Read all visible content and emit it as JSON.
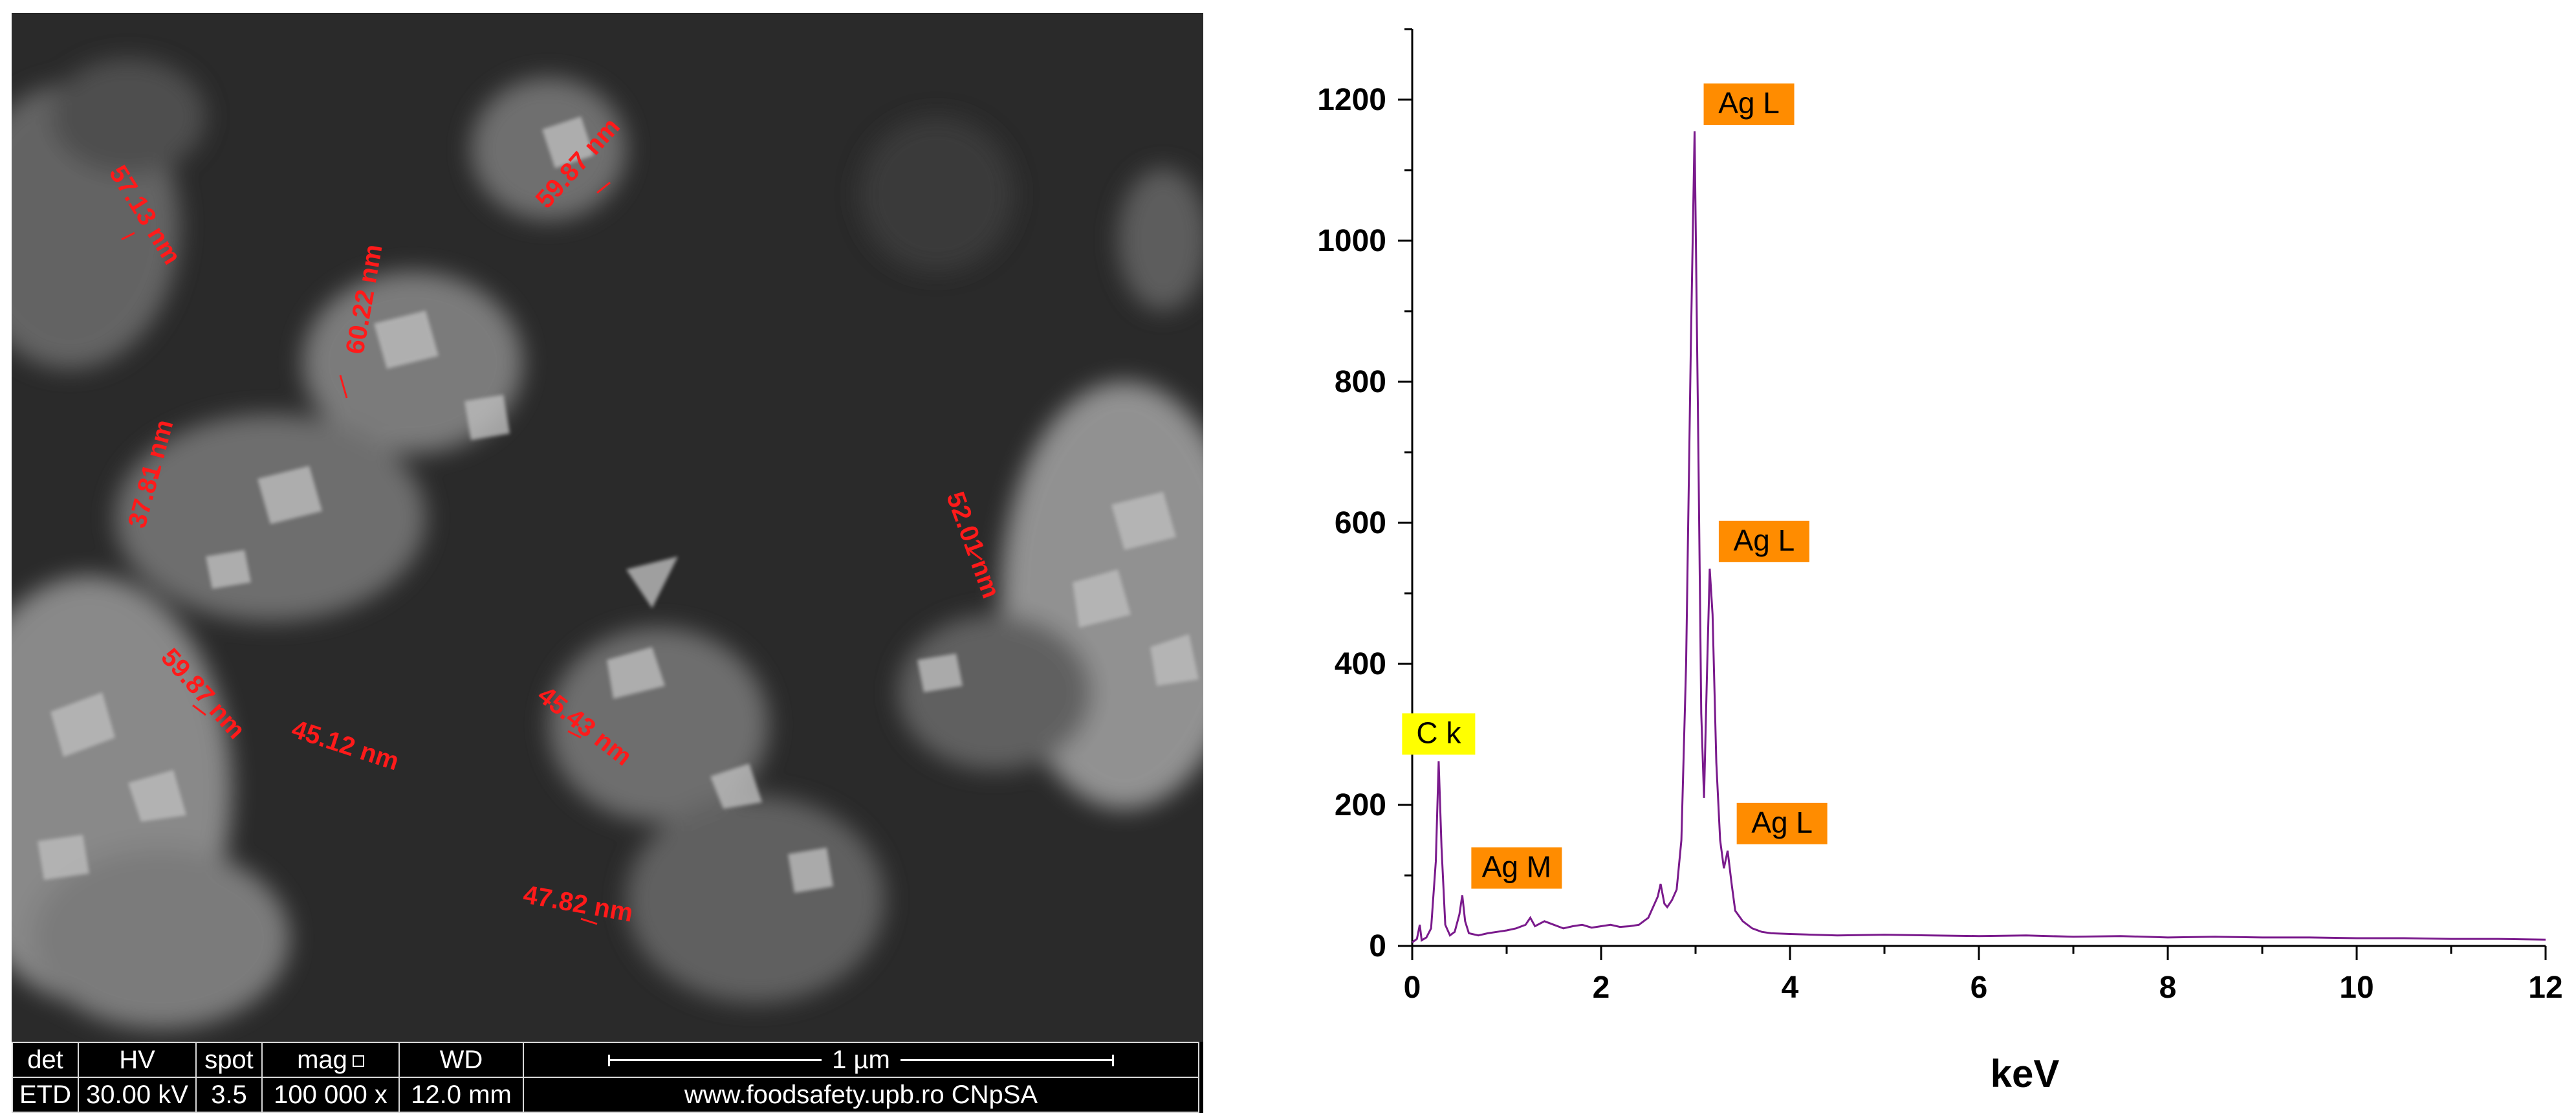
{
  "sem": {
    "measurements": [
      "57.13 nm",
      "59.87 nm",
      "60.22 nm",
      "37.81 nm",
      "52.01 nm",
      "59.87 nm",
      "45.12 nm",
      "45.43 nm",
      "47.82 nm"
    ],
    "databar": {
      "headers": [
        "det",
        "HV",
        "spot",
        "mag",
        "WD"
      ],
      "values": [
        "ETD",
        "30.00 kV",
        "3.5",
        "100 000 x",
        "12.0 mm"
      ],
      "scalebar_label": "1 µm",
      "footer": "www.foodsafety.upb.ro CNpSA"
    }
  },
  "chart_data": {
    "type": "line",
    "xlabel": "keV",
    "ylabel": "",
    "xlim": [
      0,
      12
    ],
    "ylim": [
      0,
      1300
    ],
    "x_ticks": [
      0,
      2,
      4,
      6,
      8,
      10,
      12
    ],
    "y_ticks": [
      0,
      200,
      400,
      600,
      800,
      1000,
      1200
    ],
    "series": [
      {
        "color": "#7a1a8c",
        "points": [
          [
            0,
            5
          ],
          [
            0.05,
            10
          ],
          [
            0.08,
            30
          ],
          [
            0.1,
            8
          ],
          [
            0.15,
            12
          ],
          [
            0.2,
            25
          ],
          [
            0.25,
            120
          ],
          [
            0.28,
            262
          ],
          [
            0.31,
            140
          ],
          [
            0.35,
            30
          ],
          [
            0.4,
            15
          ],
          [
            0.45,
            20
          ],
          [
            0.5,
            45
          ],
          [
            0.53,
            72
          ],
          [
            0.56,
            35
          ],
          [
            0.6,
            18
          ],
          [
            0.7,
            15
          ],
          [
            0.8,
            18
          ],
          [
            0.9,
            20
          ],
          [
            1.0,
            22
          ],
          [
            1.1,
            25
          ],
          [
            1.2,
            30
          ],
          [
            1.25,
            40
          ],
          [
            1.3,
            28
          ],
          [
            1.4,
            35
          ],
          [
            1.5,
            30
          ],
          [
            1.6,
            25
          ],
          [
            1.7,
            28
          ],
          [
            1.8,
            30
          ],
          [
            1.9,
            26
          ],
          [
            2.0,
            28
          ],
          [
            2.1,
            30
          ],
          [
            2.2,
            27
          ],
          [
            2.3,
            28
          ],
          [
            2.4,
            30
          ],
          [
            2.5,
            40
          ],
          [
            2.6,
            70
          ],
          [
            2.63,
            88
          ],
          [
            2.67,
            60
          ],
          [
            2.7,
            55
          ],
          [
            2.75,
            65
          ],
          [
            2.8,
            80
          ],
          [
            2.85,
            150
          ],
          [
            2.9,
            400
          ],
          [
            2.95,
            850
          ],
          [
            2.99,
            1155
          ],
          [
            3.03,
            700
          ],
          [
            3.06,
            330
          ],
          [
            3.09,
            210
          ],
          [
            3.12,
            380
          ],
          [
            3.15,
            535
          ],
          [
            3.18,
            470
          ],
          [
            3.22,
            260
          ],
          [
            3.26,
            150
          ],
          [
            3.3,
            110
          ],
          [
            3.34,
            135
          ],
          [
            3.38,
            90
          ],
          [
            3.42,
            50
          ],
          [
            3.5,
            35
          ],
          [
            3.6,
            25
          ],
          [
            3.7,
            20
          ],
          [
            3.8,
            18
          ],
          [
            4.0,
            17
          ],
          [
            4.5,
            15
          ],
          [
            5.0,
            16
          ],
          [
            5.5,
            15
          ],
          [
            6.0,
            14
          ],
          [
            6.5,
            15
          ],
          [
            7.0,
            13
          ],
          [
            7.5,
            14
          ],
          [
            8.0,
            12
          ],
          [
            8.5,
            13
          ],
          [
            9.0,
            12
          ],
          [
            9.5,
            12
          ],
          [
            10.0,
            11
          ],
          [
            10.5,
            11
          ],
          [
            11.0,
            10
          ],
          [
            11.5,
            10
          ],
          [
            12.0,
            9
          ]
        ]
      }
    ],
    "annotations": [
      {
        "text": "C k",
        "x": 0.28,
        "y": 262,
        "color": "#ffff00"
      },
      {
        "text": "Ag M",
        "x": 0.53,
        "y": 72,
        "color": "#ff8c00"
      },
      {
        "text": "Ag L",
        "x": 2.99,
        "y": 1155,
        "color": "#ff8c00"
      },
      {
        "text": "Ag L",
        "x": 3.15,
        "y": 535,
        "color": "#ff8c00"
      },
      {
        "text": "Ag L",
        "x": 3.34,
        "y": 135,
        "color": "#ff8c00"
      }
    ]
  }
}
